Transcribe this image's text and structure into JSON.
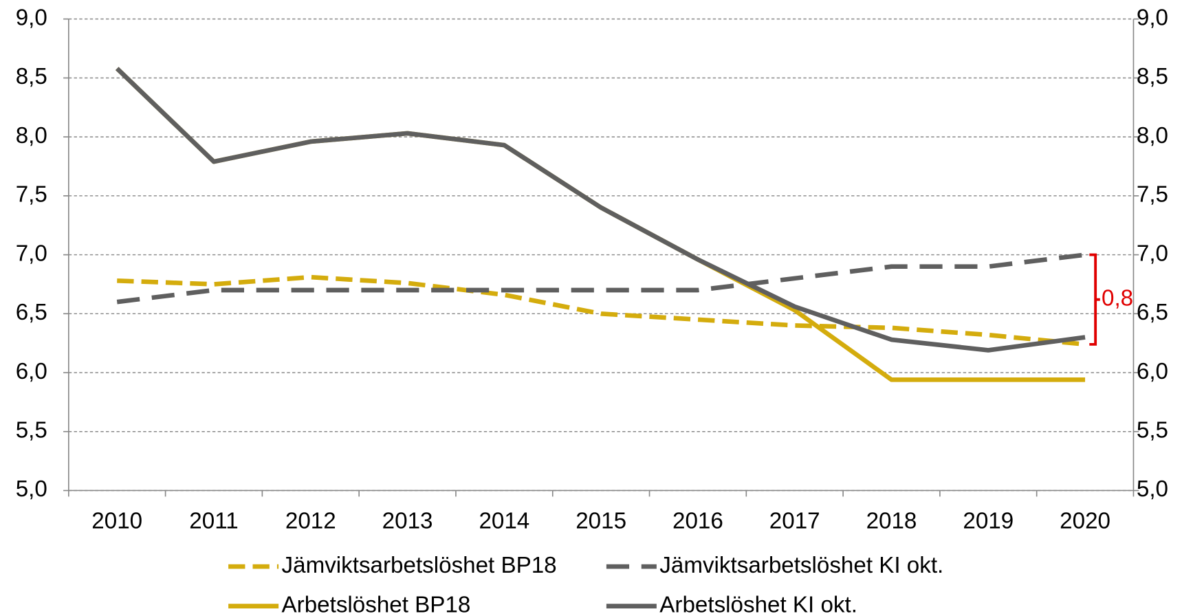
{
  "chart_data": {
    "type": "line",
    "categories": [
      "2010",
      "2011",
      "2012",
      "2013",
      "2014",
      "2015",
      "2016",
      "2017",
      "2018",
      "2019",
      "2020"
    ],
    "series": [
      {
        "name": "Jämviktsarbetslöshet BP18",
        "color": "#d4ac0d",
        "dash": "dashed",
        "values": [
          6.78,
          6.75,
          6.81,
          6.76,
          6.66,
          6.5,
          6.45,
          6.4,
          6.38,
          6.32,
          6.24
        ]
      },
      {
        "name": "Jämviktsarbetslöshet KI okt.",
        "color": "#5f5f5f",
        "dash": "dashed",
        "values": [
          6.6,
          6.7,
          6.7,
          6.7,
          6.7,
          6.7,
          6.7,
          6.8,
          6.9,
          6.9,
          7.0
        ]
      },
      {
        "name": "Arbetslöshet BP18",
        "color": "#d4ac0d",
        "dash": "solid",
        "values": [
          8.58,
          7.79,
          7.96,
          8.03,
          7.93,
          7.4,
          6.96,
          6.53,
          5.94,
          5.94,
          5.94
        ]
      },
      {
        "name": "Arbetslöshet KI okt.",
        "color": "#5f5f5f",
        "dash": "solid",
        "values": [
          8.58,
          7.79,
          7.96,
          8.03,
          7.93,
          7.4,
          6.96,
          6.56,
          6.28,
          6.19,
          6.3
        ]
      }
    ],
    "ylim": [
      5.0,
      9.0
    ],
    "yticks": [
      {
        "value": 5.0,
        "label": "5,0"
      },
      {
        "value": 5.5,
        "label": "5,5"
      },
      {
        "value": 6.0,
        "label": "6,0"
      },
      {
        "value": 6.5,
        "label": "6,5"
      },
      {
        "value": 7.0,
        "label": "7,0"
      },
      {
        "value": 7.5,
        "label": "7,5"
      },
      {
        "value": 8.0,
        "label": "8,0"
      },
      {
        "value": 8.5,
        "label": "8,5"
      },
      {
        "value": 9.0,
        "label": "9,0"
      }
    ],
    "y2lim": [
      5.0,
      9.0
    ],
    "y2ticks": [
      {
        "value": 5.0,
        "label": "5,0"
      },
      {
        "value": 5.5,
        "label": "5,5"
      },
      {
        "value": 6.0,
        "label": "6,0"
      },
      {
        "value": 6.5,
        "label": "6,5"
      },
      {
        "value": 7.0,
        "label": "7,0"
      },
      {
        "value": 7.5,
        "label": "7,5"
      },
      {
        "value": 8.0,
        "label": "8,0"
      },
      {
        "value": 8.5,
        "label": "8,5"
      },
      {
        "value": 9.0,
        "label": "9,0"
      }
    ],
    "grid": true,
    "legend": "bottom",
    "annotation": {
      "text": "0,8",
      "color": "#e00000"
    }
  }
}
